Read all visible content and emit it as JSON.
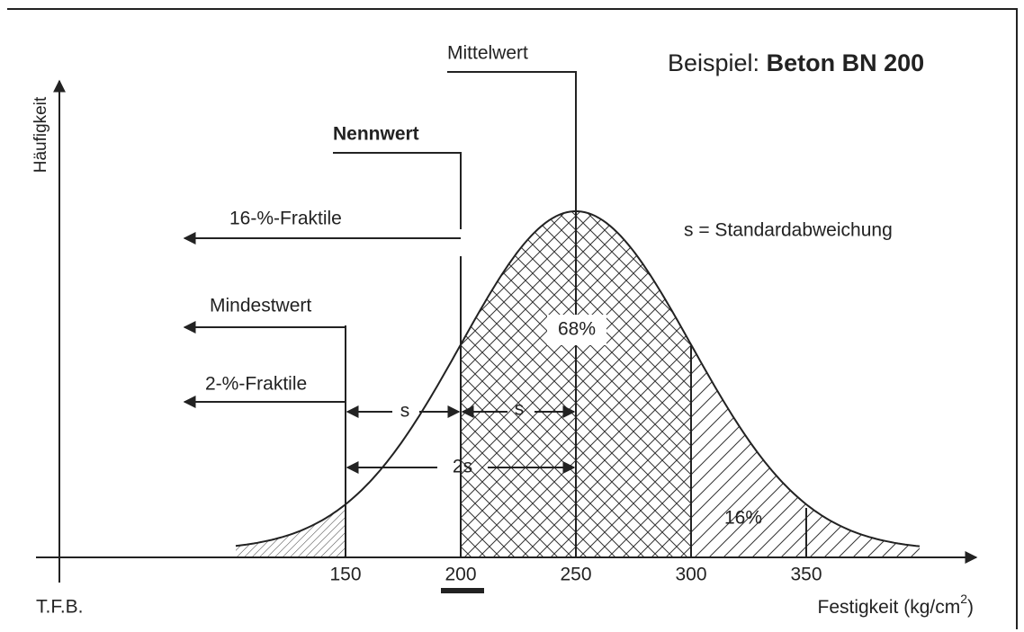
{
  "title": {
    "prefix": "Beispiel:",
    "bold": "Beton BN 200"
  },
  "labels": {
    "mean": "Mittelwert",
    "nominal": "Nennwert",
    "fractile16": "16-%-Fraktile",
    "minimum": "Mindestwert",
    "fractile2": "2-%-Fraktile",
    "sd_note": "s = Standardabweichung",
    "center_pct": "68%",
    "tail_pct": "16%",
    "s_left": "s",
    "s_right": "s",
    "two_s": "2s",
    "credit": "T.F.B."
  },
  "axis": {
    "y_label": "Häufigkeit",
    "x_label": {
      "text": "Festigkeit (kg/cm",
      "sup": "2",
      "close": ")"
    },
    "ticks": [
      150,
      200,
      250,
      300,
      350
    ]
  }
}
